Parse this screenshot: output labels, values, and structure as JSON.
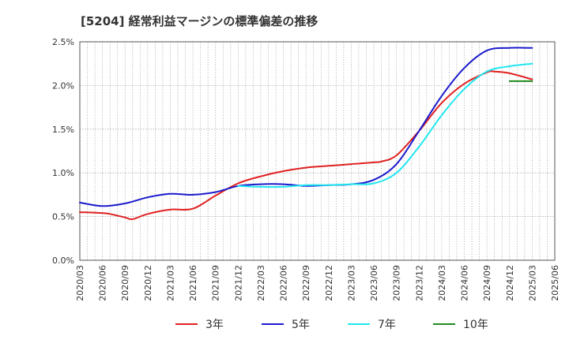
{
  "chart_data": {
    "type": "line",
    "title": "[5204]  経常利益マージンの標準偏差の推移",
    "xlabel": "",
    "ylabel": "",
    "x_ticks": [
      "2020/03",
      "2020/06",
      "2020/09",
      "2020/12",
      "2021/03",
      "2021/06",
      "2021/09",
      "2021/12",
      "2022/03",
      "2022/06",
      "2022/09",
      "2022/12",
      "2023/03",
      "2023/06",
      "2023/09",
      "2023/12",
      "2024/03",
      "2024/06",
      "2024/09",
      "2024/12",
      "2025/03",
      "2025/06"
    ],
    "y_ticks": [
      "0.0%",
      "0.5%",
      "1.0%",
      "1.5%",
      "2.0%",
      "2.5%"
    ],
    "ylim": [
      0,
      2.5
    ],
    "y_unit": "%",
    "grid": true,
    "legend_position": "bottom",
    "series": [
      {
        "name": "3年",
        "color": "#e02020",
        "x": [
          "2020/03",
          "2020/06",
          "2020/07",
          "2020/09",
          "2020/10",
          "2020/12",
          "2021/03",
          "2021/06",
          "2021/09",
          "2021/12",
          "2022/03",
          "2022/06",
          "2022/09",
          "2022/12",
          "2023/03",
          "2023/06",
          "2023/07",
          "2023/09",
          "2023/12",
          "2024/03",
          "2024/06",
          "2024/09",
          "2024/10",
          "2024/12",
          "2025/03"
        ],
        "values": [
          0.55,
          0.54,
          0.53,
          0.49,
          0.47,
          0.53,
          0.58,
          0.59,
          0.74,
          0.88,
          0.96,
          1.02,
          1.06,
          1.08,
          1.1,
          1.12,
          1.13,
          1.2,
          1.48,
          1.8,
          2.02,
          2.15,
          2.16,
          2.14,
          2.07
        ]
      },
      {
        "name": "5年",
        "color": "#1a1acc",
        "x": [
          "2020/03",
          "2020/06",
          "2020/09",
          "2020/12",
          "2021/03",
          "2021/06",
          "2021/09",
          "2021/12",
          "2022/03",
          "2022/06",
          "2022/09",
          "2022/12",
          "2023/03",
          "2023/06",
          "2023/09",
          "2023/12",
          "2024/03",
          "2024/06",
          "2024/09",
          "2024/12",
          "2025/03"
        ],
        "values": [
          0.66,
          0.62,
          0.65,
          0.72,
          0.76,
          0.75,
          0.78,
          0.85,
          0.87,
          0.87,
          0.85,
          0.86,
          0.87,
          0.92,
          1.1,
          1.48,
          1.88,
          2.2,
          2.4,
          2.43,
          2.43
        ]
      },
      {
        "name": "7年",
        "color": "#22e6f0",
        "x": [
          "2021/12",
          "2022/03",
          "2022/06",
          "2022/09",
          "2022/12",
          "2023/03",
          "2023/06",
          "2023/09",
          "2023/12",
          "2024/03",
          "2024/06",
          "2024/09",
          "2024/12",
          "2025/03"
        ],
        "values": [
          0.85,
          0.84,
          0.84,
          0.86,
          0.86,
          0.87,
          0.88,
          1.0,
          1.3,
          1.66,
          1.96,
          2.16,
          2.22,
          2.25
        ]
      },
      {
        "name": "10年",
        "color": "#1f8a1f",
        "x": [
          "2024/12",
          "2025/03"
        ],
        "values": [
          2.05,
          2.05
        ]
      }
    ]
  }
}
